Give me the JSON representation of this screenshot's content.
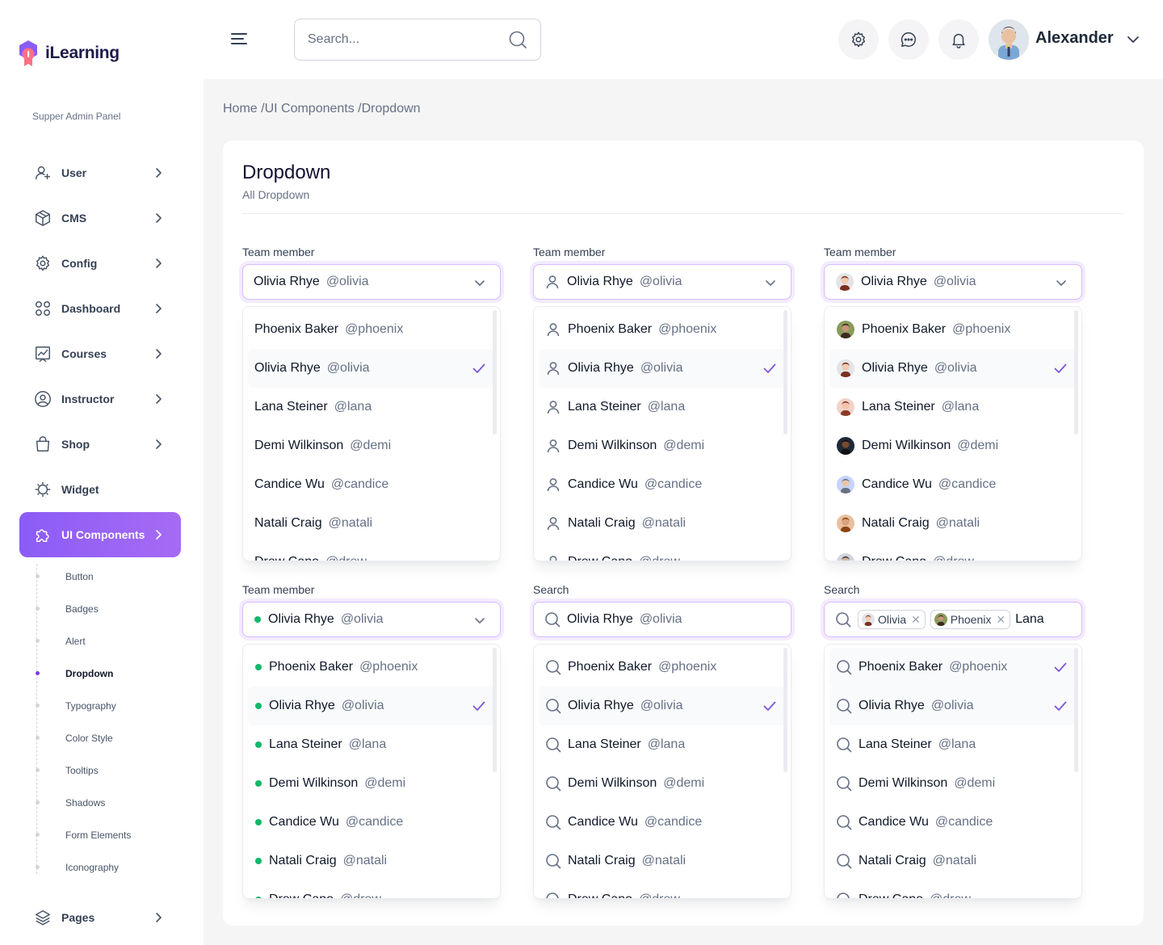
{
  "app": {
    "name": "iLearning",
    "panel_label": "Supper Admin Panel"
  },
  "nav": {
    "items": [
      {
        "label": "User",
        "icon": "user-plus-icon"
      },
      {
        "label": "CMS",
        "icon": "cube-icon"
      },
      {
        "label": "Config",
        "icon": "gear-icon"
      },
      {
        "label": "Dashboard",
        "icon": "grid-icon"
      },
      {
        "label": "Courses",
        "icon": "chart-icon"
      },
      {
        "label": "Instructor",
        "icon": "user-circle-icon"
      },
      {
        "label": "Shop",
        "icon": "bag-icon"
      },
      {
        "label": "Widget",
        "icon": "widget-icon"
      },
      {
        "label": "UI Components",
        "icon": "puzzle-icon"
      }
    ],
    "sub_items": [
      "Button",
      "Badges",
      "Alert",
      "Dropdown",
      "Typography",
      "Color Style",
      "Tooltips",
      "Shadows",
      "Form Elements",
      "Iconography"
    ],
    "active_sub": "Dropdown",
    "pages_label": "Pages"
  },
  "header": {
    "search_placeholder": "Search...",
    "user_name": "Alexander"
  },
  "breadcrumb": "Home /UI Components /Dropdown",
  "card": {
    "title": "Dropdown",
    "subtitle": "All Dropdown"
  },
  "colors": {
    "accent": "#8b5cf6",
    "online": "#12b76a",
    "check": "#7f56d9"
  },
  "people": [
    {
      "name": "Phoenix Baker",
      "handle": "@phoenix"
    },
    {
      "name": "Olivia Rhye",
      "handle": "@olivia"
    },
    {
      "name": "Lana Steiner",
      "handle": "@lana"
    },
    {
      "name": "Demi Wilkinson",
      "handle": "@demi"
    },
    {
      "name": "Candice Wu",
      "handle": "@candice"
    },
    {
      "name": "Natali Craig",
      "handle": "@natali"
    },
    {
      "name": "Drew Cano",
      "handle": "@drew"
    }
  ],
  "dropdowns": [
    {
      "label": "Team member",
      "lead": "none",
      "selected": {
        "name": "Olivia Rhye",
        "handle": "@olivia"
      },
      "checked": [
        1
      ]
    },
    {
      "label": "Team member",
      "lead": "user-icon",
      "selected": {
        "name": "Olivia Rhye",
        "handle": "@olivia"
      },
      "checked": [
        1
      ]
    },
    {
      "label": "Team member",
      "lead": "avatar",
      "selected": {
        "name": "Olivia Rhye",
        "handle": "@olivia"
      },
      "checked": [
        1
      ]
    },
    {
      "label": "Team member",
      "lead": "dot",
      "selected": {
        "name": "Olivia Rhye",
        "handle": "@olivia"
      },
      "checked": [
        1
      ]
    },
    {
      "label": "Search",
      "lead": "search-icon",
      "selected": {
        "name": "Olivia Rhye",
        "handle": "@olivia"
      },
      "checked": [
        1
      ]
    },
    {
      "label": "Search",
      "lead": "search-icon",
      "tags": [
        "Olivia",
        "Phoenix"
      ],
      "input_value": "Lana",
      "checked": [
        0,
        1
      ]
    }
  ]
}
